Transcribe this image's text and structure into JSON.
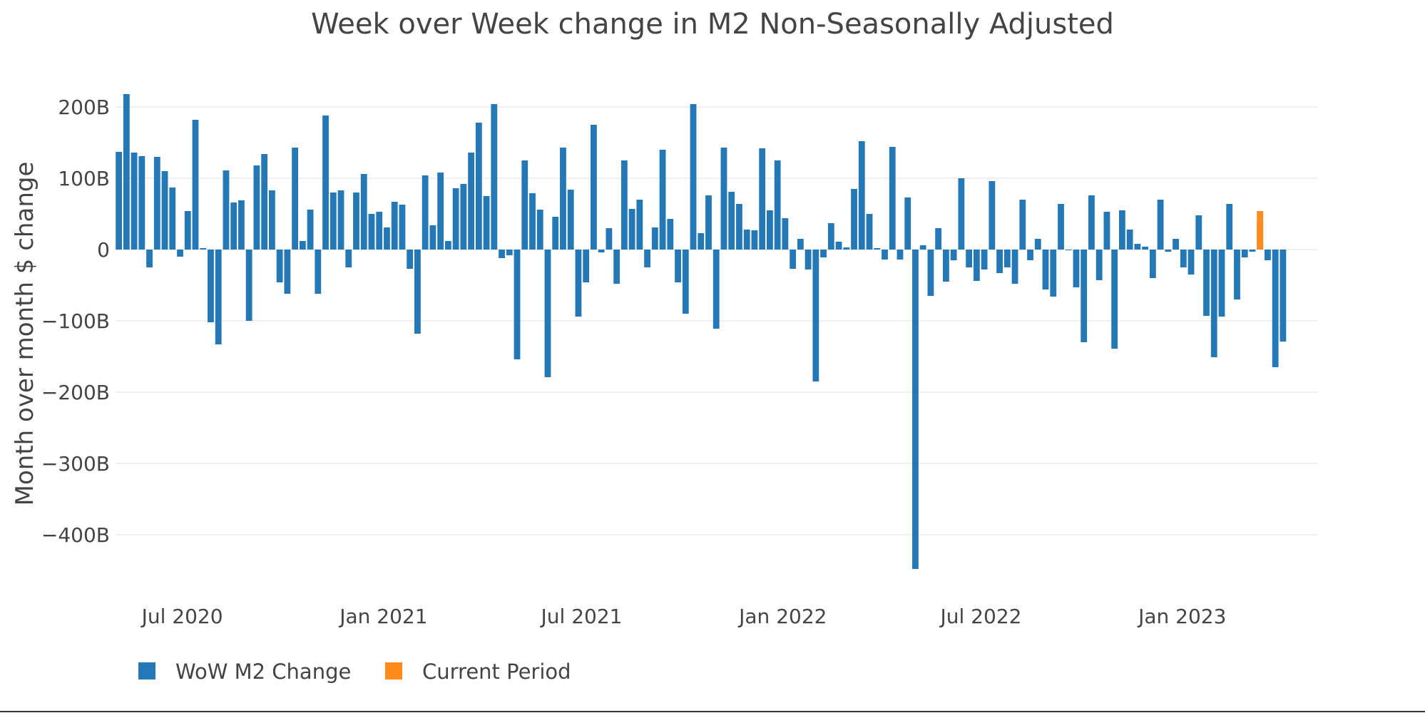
{
  "chart_data": {
    "type": "bar",
    "title": "Week over Week change in M2 Non-Seasonally Adjusted",
    "xlabel": "",
    "ylabel": "Month over month $ change",
    "x_axis": {
      "type": "date",
      "start": "2020-05-04",
      "freq": "weekly",
      "range": [
        "2020-05-01",
        "2023-05-05"
      ]
    },
    "ylim": [
      -470,
      235
    ],
    "y_ticks": [
      200,
      100,
      0,
      -100,
      -200,
      -300,
      -400
    ],
    "y_tick_labels": [
      "200B",
      "100B",
      "0",
      "−100B",
      "−200B",
      "−300B",
      "−400B"
    ],
    "x_ticks": [
      "2020-07-01",
      "2021-01-01",
      "2021-07-01",
      "2022-01-01",
      "2022-07-01",
      "2023-01-01"
    ],
    "x_tick_labels": [
      "Jul 2020",
      "Jan 2021",
      "Jul 2021",
      "Jan 2022",
      "Jul 2022",
      "Jan 2023"
    ],
    "grid": true,
    "legend_position": "bottom-left",
    "series": [
      {
        "name": "WoW M2 Change",
        "color": "#2378b5",
        "values": [
          137,
          218,
          136,
          131,
          -25,
          130,
          110,
          87,
          -10,
          54,
          182,
          2,
          -102,
          -133,
          111,
          66,
          69,
          -100,
          118,
          134,
          83,
          -46,
          -62,
          143,
          12,
          56,
          -62,
          188,
          80,
          83,
          -25,
          80,
          106,
          50,
          53,
          31,
          67,
          63,
          -27,
          -118,
          104,
          34,
          108,
          12,
          86,
          92,
          136,
          178,
          75,
          204,
          -12,
          -8,
          -154,
          125,
          79,
          56,
          -179,
          46,
          143,
          84,
          -94,
          -46,
          175,
          -4,
          30,
          -48,
          125,
          57,
          70,
          -25,
          31,
          140,
          43,
          -46,
          -90,
          204,
          23,
          76,
          -111,
          143,
          81,
          64,
          28,
          27,
          142,
          55,
          125,
          44,
          -27,
          15,
          -28,
          -185,
          -11,
          37,
          11,
          3,
          85,
          152,
          50,
          2,
          -14,
          144,
          -14,
          73,
          -448,
          6,
          -65,
          30,
          -45,
          -15,
          100,
          -25,
          -44,
          -28,
          96,
          -33,
          -25,
          -48,
          70,
          -15,
          15,
          -56,
          -66,
          64,
          -1,
          -53,
          -130,
          76,
          -43,
          53,
          -139,
          55,
          28,
          8,
          4,
          -40,
          70,
          -3,
          15,
          -25,
          -35,
          48,
          -93,
          -151,
          -94,
          64,
          -70,
          -11,
          -3,
          39,
          -15,
          -165,
          -129,
          0
        ]
      },
      {
        "name": "Current Period",
        "color": "#ff8c1a",
        "values": [
          0,
          0,
          0,
          0,
          0,
          0,
          0,
          0,
          0,
          0,
          0,
          0,
          0,
          0,
          0,
          0,
          0,
          0,
          0,
          0,
          0,
          0,
          0,
          0,
          0,
          0,
          0,
          0,
          0,
          0,
          0,
          0,
          0,
          0,
          0,
          0,
          0,
          0,
          0,
          0,
          0,
          0,
          0,
          0,
          0,
          0,
          0,
          0,
          0,
          0,
          0,
          0,
          0,
          0,
          0,
          0,
          0,
          0,
          0,
          0,
          0,
          0,
          0,
          0,
          0,
          0,
          0,
          0,
          0,
          0,
          0,
          0,
          0,
          0,
          0,
          0,
          0,
          0,
          0,
          0,
          0,
          0,
          0,
          0,
          0,
          0,
          0,
          0,
          0,
          0,
          0,
          0,
          0,
          0,
          0,
          0,
          0,
          0,
          0,
          0,
          0,
          0,
          0,
          0,
          0,
          0,
          0,
          0,
          0,
          0,
          0,
          0,
          0,
          0,
          0,
          0,
          0,
          0,
          0,
          0,
          0,
          0,
          0,
          0,
          0,
          0,
          0,
          0,
          0,
          0,
          0,
          0,
          0,
          0,
          0,
          0,
          0,
          0,
          0,
          0,
          0,
          0,
          0,
          0,
          0,
          0,
          0,
          0,
          0,
          54
        ]
      }
    ]
  }
}
